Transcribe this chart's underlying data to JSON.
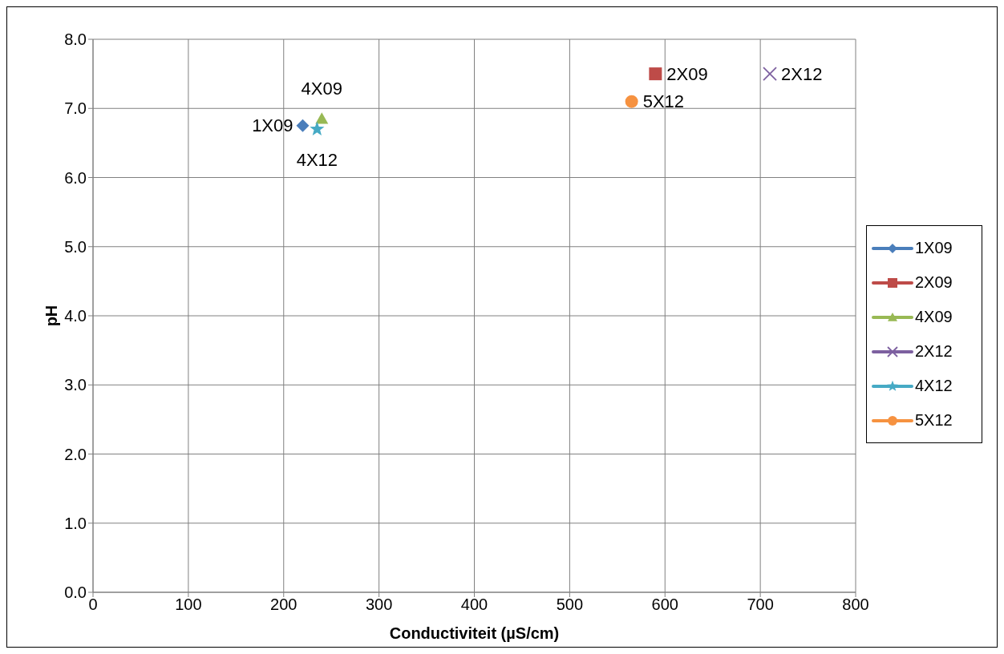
{
  "chart_data": {
    "type": "scatter",
    "xlabel": "Conductiviteit (µS/cm)",
    "ylabel": "pH",
    "series": [
      {
        "name": "1X09",
        "color": "#4a7ebb",
        "x": [
          220
        ],
        "values": [
          6.75
        ],
        "marker": "diamond"
      },
      {
        "name": "2X09",
        "color": "#be4b48",
        "x": [
          590
        ],
        "values": [
          7.5
        ],
        "marker": "square"
      },
      {
        "name": "4X09",
        "color": "#98b954",
        "x": [
          240
        ],
        "values": [
          6.85
        ],
        "marker": "triangle"
      },
      {
        "name": "2X12",
        "color": "#7d60a0",
        "x": [
          710
        ],
        "values": [
          7.5
        ],
        "marker": "cross"
      },
      {
        "name": "4X12",
        "color": "#46aac5",
        "x": [
          235
        ],
        "values": [
          6.7
        ],
        "marker": "star"
      },
      {
        "name": "5X12",
        "color": "#f69240",
        "x": [
          565
        ],
        "values": [
          7.1
        ],
        "marker": "circle"
      }
    ],
    "xlim": [
      0,
      800
    ],
    "xticks": [
      0,
      100,
      200,
      300,
      400,
      500,
      600,
      700,
      800
    ],
    "ylim": [
      0,
      8
    ],
    "yticks": [
      {
        "value": 0,
        "label": "0.0"
      },
      {
        "value": 1,
        "label": "1.0"
      },
      {
        "value": 2,
        "label": "2.0"
      },
      {
        "value": 3,
        "label": "3.0"
      },
      {
        "value": 4,
        "label": "4.0"
      },
      {
        "value": 5,
        "label": "5.0"
      },
      {
        "value": 6,
        "label": "6.0"
      },
      {
        "value": 7,
        "label": "7.0"
      },
      {
        "value": 8,
        "label": "8.0"
      }
    ],
    "grid": true,
    "legend": "right"
  }
}
